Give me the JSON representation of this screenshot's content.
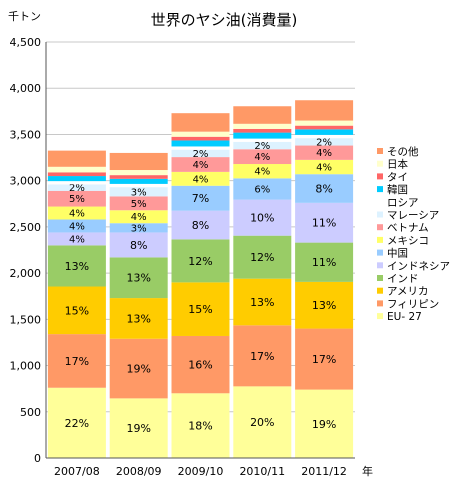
{
  "chart_data": {
    "type": "bar",
    "stacked": true,
    "title": "世界のヤシ油(消費量)",
    "ylabel": "千トン",
    "xlabel": "年",
    "ylim": [
      0,
      4500
    ],
    "yticks": [
      0,
      500,
      1000,
      1500,
      2000,
      2500,
      3000,
      3500,
      4000,
      4500
    ],
    "ytick_labels": [
      "0",
      "500",
      "1,000",
      "1,500",
      "2,000",
      "2,500",
      "3,000",
      "3,500",
      "4,000",
      "4,500"
    ],
    "grid": true,
    "legend_position": "right",
    "categories": [
      "2007/08",
      "2008/09",
      "2009/10",
      "2010/11",
      "2011/12"
    ],
    "series": [
      {
        "name": "EU- 27",
        "color": "#FFFF99",
        "values": [
          760,
          645,
          700,
          775,
          740
        ],
        "labels": [
          "22%",
          "19%",
          "18%",
          "20%",
          "19%"
        ]
      },
      {
        "name": "フィリピン",
        "color": "#FF9966",
        "values": [
          580,
          645,
          620,
          660,
          660
        ],
        "labels": [
          "17%",
          "19%",
          "16%",
          "17%",
          "17%"
        ]
      },
      {
        "name": "アメリカ",
        "color": "#FFCC00",
        "values": [
          515,
          440,
          580,
          505,
          505
        ],
        "labels": [
          "15%",
          "13%",
          "15%",
          "13%",
          "13%"
        ]
      },
      {
        "name": "インド",
        "color": "#99CC66",
        "values": [
          445,
          440,
          465,
          465,
          425
        ],
        "labels": [
          "13%",
          "13%",
          "12%",
          "12%",
          "11%"
        ]
      },
      {
        "name": "インドネシア",
        "color": "#CCCCFF",
        "values": [
          140,
          270,
          310,
          390,
          430
        ],
        "labels": [
          "4%",
          "8%",
          "8%",
          "10%",
          "11%"
        ]
      },
      {
        "name": "中国",
        "color": "#99CCFF",
        "values": [
          140,
          100,
          270,
          230,
          310
        ],
        "labels": [
          "4%",
          "3%",
          "7%",
          "6%",
          "8%"
        ]
      },
      {
        "name": "メキシコ",
        "color": "#FFFF66",
        "values": [
          140,
          140,
          150,
          155,
          155
        ],
        "labels": [
          "4%",
          "4%",
          "4%",
          "4%",
          "4%"
        ]
      },
      {
        "name": "ベトナム",
        "color": "#FF9999",
        "values": [
          170,
          150,
          160,
          160,
          155
        ],
        "labels": [
          "5%",
          "5%",
          "4%",
          "4%",
          "4%"
        ]
      },
      {
        "name": "マレーシア",
        "color": "#DDF2FF",
        "values": [
          70,
          100,
          80,
          80,
          80
        ],
        "labels": [
          "2%",
          "3%",
          "2%",
          "2%",
          "2%"
        ]
      },
      {
        "name": "ロシア",
        "color": "#FFFFFF",
        "values": [
          35,
          35,
          35,
          35,
          35
        ],
        "labels": [
          "",
          "",
          "",
          "",
          ""
        ]
      },
      {
        "name": "韓国",
        "color": "#00CCFF",
        "values": [
          55,
          55,
          65,
          65,
          60
        ],
        "labels": [
          "",
          "",
          "",
          "",
          ""
        ]
      },
      {
        "name": "タイ",
        "color": "#FF6666",
        "values": [
          40,
          40,
          40,
          40,
          40
        ],
        "labels": [
          "",
          "",
          "",
          "",
          ""
        ]
      },
      {
        "name": "日本",
        "color": "#FFFFCC",
        "values": [
          60,
          55,
          55,
          55,
          55
        ],
        "labels": [
          "",
          "",
          "",
          "",
          ""
        ]
      },
      {
        "name": "その他",
        "color": "#FF9966",
        "values": [
          175,
          185,
          200,
          190,
          220
        ],
        "labels": [
          "",
          "",
          "",
          "",
          ""
        ]
      }
    ]
  }
}
